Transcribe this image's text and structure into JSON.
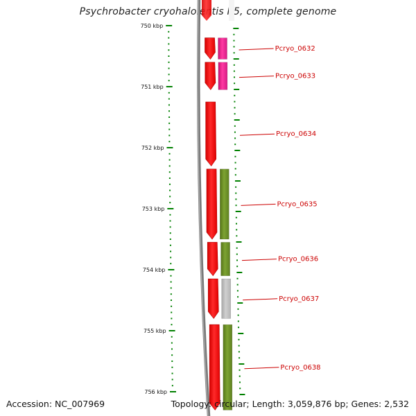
{
  "title": "Psychrobacter cryohalolentis K5, complete genome",
  "footer": {
    "accession": "Accession: NC_007969",
    "topology": "Topology: circular; Length: 3,059,876 bp; Genes: 2,532"
  },
  "colors": {
    "cds_forward": "#ff0000",
    "rna_or_feature": "#ee1e8c",
    "cog_feature": "#6b8e23",
    "uncategorized": "#b8b8b8",
    "ticks": "#008000",
    "labels": "#cc0000",
    "backbone": "#808080"
  },
  "ruler": {
    "unit": "kbp",
    "ticks": [
      "750 kbp",
      "751 kbp",
      "752 kbp",
      "753 kbp",
      "754 kbp",
      "755 kbp",
      "756 kbp"
    ]
  },
  "genes": [
    {
      "name": "Pcryo_0632",
      "start_kbp": 750.2,
      "end_kbp": 750.55
    },
    {
      "name": "Pcryo_0633",
      "start_kbp": 750.6,
      "end_kbp": 751.05
    },
    {
      "name": "Pcryo_0634",
      "start_kbp": 751.25,
      "end_kbp": 752.3
    },
    {
      "name": "Pcryo_0635",
      "start_kbp": 752.35,
      "end_kbp": 753.5
    },
    {
      "name": "Pcryo_0636",
      "start_kbp": 753.55,
      "end_kbp": 754.1
    },
    {
      "name": "Pcryo_0637",
      "start_kbp": 754.15,
      "end_kbp": 754.8
    },
    {
      "name": "Pcryo_0638",
      "start_kbp": 754.9,
      "end_kbp": 756.3
    }
  ],
  "second_track": [
    {
      "gene": "Pcryo_0632",
      "type": "rna_or_feature"
    },
    {
      "gene": "Pcryo_0633",
      "type": "rna_or_feature"
    },
    {
      "gene": "Pcryo_0635",
      "type": "cog_feature"
    },
    {
      "gene": "Pcryo_0636",
      "type": "cog_feature"
    },
    {
      "gene": "Pcryo_0637",
      "type": "uncategorized"
    },
    {
      "gene": "Pcryo_0638",
      "type": "cog_feature"
    }
  ]
}
